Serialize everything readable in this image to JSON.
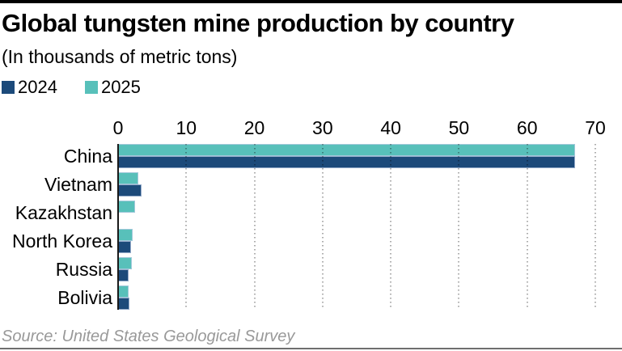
{
  "header": {
    "title": "Global tungsten mine production by country",
    "subtitle": "(In thousands of metric tons)"
  },
  "legend": {
    "items": [
      {
        "label": "2024",
        "color": "#1c4a7a"
      },
      {
        "label": "2025",
        "color": "#58c0ba"
      }
    ]
  },
  "chart_data": {
    "type": "bar",
    "orientation": "horizontal",
    "title": "Global tungsten mine production by country",
    "subtitle": "(In thousands of metric tons)",
    "xlabel": "",
    "ylabel": "",
    "xlim": [
      0,
      70
    ],
    "x_ticks": [
      0,
      10,
      20,
      30,
      40,
      50,
      60,
      70
    ],
    "grid": "dotted-vertical",
    "legend_position": "top-left",
    "categories": [
      "China",
      "Vietnam",
      "Kazakhstan",
      "North Korea",
      "Russia",
      "Bolivia"
    ],
    "series": [
      {
        "name": "2024",
        "color": "#1c4a7a",
        "values": [
          67,
          3.4,
          0,
          1.9,
          1.5,
          1.7
        ]
      },
      {
        "name": "2025",
        "color": "#58c0ba",
        "values": [
          67,
          3,
          2.5,
          2.1,
          2,
          1.6
        ]
      }
    ],
    "bar_order_top_to_bottom": [
      "2025",
      "2024"
    ]
  },
  "source": {
    "text": "Source: United States Geological Survey"
  }
}
